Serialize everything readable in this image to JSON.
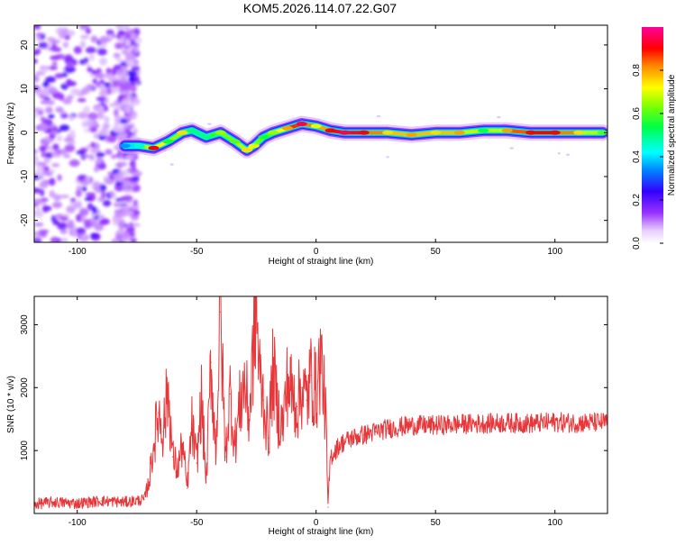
{
  "title": "KOM5.2026.114.07.22.G07",
  "chart_data": [
    {
      "type": "heatmap",
      "xlabel": "Height of straight line (km)",
      "ylabel": "Frequency (Hz)",
      "xlim": [
        -118,
        122
      ],
      "ylim": [
        -25,
        24.5
      ],
      "xticks": [
        -100,
        -50,
        0,
        50,
        100
      ],
      "yticks": [
        -20,
        -10,
        0,
        10,
        20
      ],
      "colorbar": {
        "label": "Normalized spectral amplitude",
        "range": [
          0,
          1
        ],
        "ticks": [
          0.0,
          0.2,
          0.4,
          0.6,
          0.8
        ],
        "tick_labels": [
          "0.0",
          "0.2",
          "0.4",
          "0.6",
          "0.8"
        ]
      },
      "noise_region": {
        "x_range": [
          -118,
          -75
        ],
        "y_range": [
          -25,
          24.5
        ]
      },
      "ridge": {
        "x": [
          -80,
          -74,
          -68,
          -62,
          -56,
          -52,
          -46,
          -40,
          -34,
          -29,
          -26,
          -22,
          -18,
          -12,
          -6,
          0,
          6,
          12,
          20,
          30,
          40,
          50,
          60,
          70,
          80,
          90,
          100,
          110,
          120
        ],
        "frequency": [
          -3,
          -3,
          -3.5,
          -2,
          0,
          0.5,
          -1,
          0,
          -2,
          -4,
          -3,
          -1,
          0,
          1,
          2,
          1.5,
          0.5,
          0,
          0,
          0,
          -0.5,
          0,
          0,
          0.5,
          0.5,
          0,
          0,
          0,
          0
        ],
        "amplitude": [
          0.35,
          0.45,
          0.9,
          0.55,
          0.75,
          0.5,
          0.5,
          0.65,
          0.6,
          0.75,
          0.7,
          0.55,
          0.65,
          0.8,
          0.95,
          0.7,
          0.9,
          0.95,
          0.9,
          0.75,
          0.8,
          0.75,
          0.8,
          0.55,
          0.8,
          0.9,
          0.9,
          0.75,
          0.6
        ]
      }
    },
    {
      "type": "line",
      "xlabel": "Height of straight line (km)",
      "ylabel": "SNR (10 * v/v)",
      "xlim": [
        -118,
        122
      ],
      "ylim": [
        0,
        3450
      ],
      "xticks": [
        -100,
        -50,
        0,
        50,
        100
      ],
      "yticks": [
        1000,
        2000,
        3000
      ],
      "color": "#e8373a",
      "series": [
        {
          "x": [
            -118,
            -110,
            -100,
            -90,
            -80,
            -72,
            -70,
            -68,
            -66,
            -64,
            -62,
            -60,
            -58,
            -56,
            -54,
            -52,
            -50,
            -48,
            -46,
            -44,
            -42,
            -40,
            -38,
            -36,
            -34,
            -32,
            -30,
            -28,
            -26,
            -25,
            -24,
            -22,
            -20,
            -18,
            -16,
            -14,
            -12,
            -10,
            -8,
            -6,
            -4,
            -2,
            0,
            2,
            4,
            5,
            6,
            8,
            10,
            15,
            20,
            25,
            30,
            40,
            50,
            60,
            70,
            80,
            90,
            100,
            110,
            122
          ],
          "y": [
            150,
            180,
            160,
            200,
            180,
            220,
            500,
            1100,
            1600,
            1300,
            2000,
            900,
            700,
            1100,
            400,
            1400,
            800,
            1800,
            500,
            2400,
            1000,
            3200,
            900,
            1900,
            1100,
            1700,
            2100,
            1500,
            2800,
            3400,
            2300,
            1800,
            1200,
            2300,
            1600,
            1400,
            2100,
            1900,
            1700,
            2000,
            1800,
            2200,
            1900,
            2500,
            1600,
            100,
            900,
            1000,
            1100,
            1200,
            1250,
            1300,
            1350,
            1400,
            1400,
            1420,
            1430,
            1440,
            1430,
            1450,
            1440,
            1450
          ]
        }
      ]
    }
  ]
}
